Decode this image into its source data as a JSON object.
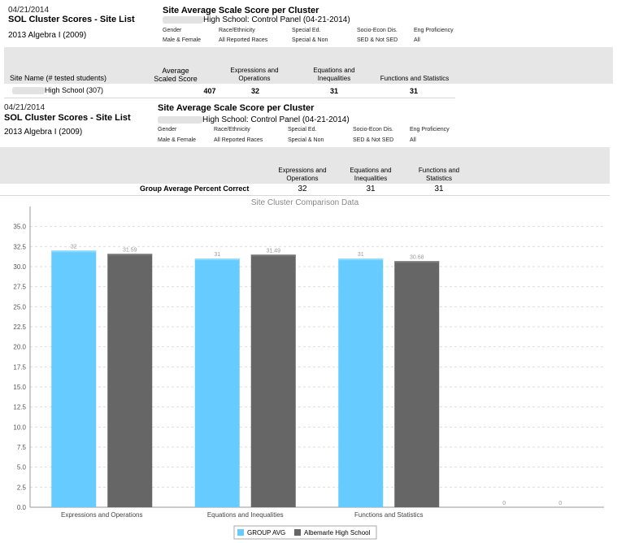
{
  "report1": {
    "date": "04/21/2014",
    "title": "SOL Cluster Scores - Site List",
    "subtitle": "2013 Algebra I (2009)",
    "panel_title": "Site Average Scale Score per Cluster",
    "panel_sub": "High School: Control Panel (04-21-2014)",
    "filters": [
      {
        "label": "Gender",
        "value": "Male & Female"
      },
      {
        "label": "Race/Ethnicity",
        "value": "All Reported Races"
      },
      {
        "label": "Special Ed.",
        "value": "Special & Non"
      },
      {
        "label": "Socio-Econ Dis.",
        "value": "SED & Not SED"
      },
      {
        "label": "Eng Proficiency",
        "value": "All"
      }
    ],
    "columns": {
      "site": "Site Name (# tested students)",
      "avg_line1": "Average",
      "avg_line2": "Scaled Score",
      "expr_line1": "Expressions and",
      "expr_line2": "Operations",
      "eq_line1": "Equations and",
      "eq_line2": "Inequalities",
      "func": "Functions and Statistics"
    },
    "row": {
      "site": "High School (307)",
      "avg": "407",
      "expr": "32",
      "eq": "31",
      "func": "31"
    }
  },
  "report2": {
    "date": "04/21/2014",
    "title": "SOL Cluster Scores - Site List",
    "subtitle": "2013 Algebra I (2009)",
    "panel_title": "Site Average Scale Score per Cluster",
    "panel_sub": "High School: Control Panel (04-21-2014)",
    "filters": [
      {
        "label": "Gender",
        "value": "Male & Female"
      },
      {
        "label": "Race/Ethnicity",
        "value": "All Reported Races"
      },
      {
        "label": "Special Ed.",
        "value": "Special & Non"
      },
      {
        "label": "Socio-Econ Dis.",
        "value": "SED & Not SED"
      },
      {
        "label": "Eng Proficiency",
        "value": "All"
      }
    ],
    "columns": {
      "expr_line1": "Expressions and",
      "expr_line2": "Operations",
      "eq_line1": "Equations and",
      "eq_line2": "Inequalities",
      "func_line1": "Functions and",
      "func_line2": "Statistics"
    },
    "row": {
      "label": "Group Average Percent Correct",
      "expr": "32",
      "eq": "31",
      "func": "31"
    }
  },
  "chart_data": {
    "type": "bar",
    "title": "Site Cluster Comparison Data",
    "xlabel": "",
    "ylabel": "",
    "ylim": [
      0,
      37.5
    ],
    "yticks": [
      "0.0",
      "2.5",
      "5.0",
      "7.5",
      "10.0",
      "12.5",
      "15.0",
      "17.5",
      "20.0",
      "22.5",
      "25.0",
      "27.5",
      "30.0",
      "32.5",
      "35.0"
    ],
    "categories": [
      "Expressions and Operations",
      "Equations and Inequalities",
      "Functions and Statistics",
      ""
    ],
    "series": [
      {
        "name": "GROUP AVG",
        "color": "#66ccff",
        "values": [
          32,
          31,
          31,
          0
        ],
        "labels": [
          "32",
          "31",
          "31",
          "0"
        ]
      },
      {
        "name": "Albemarle High School",
        "color": "#666666",
        "values": [
          31.59,
          31.49,
          30.68,
          0
        ],
        "labels": [
          "31.59",
          "31.49",
          "30.68",
          "0"
        ]
      }
    ],
    "grid": true,
    "legend": "bottom"
  }
}
